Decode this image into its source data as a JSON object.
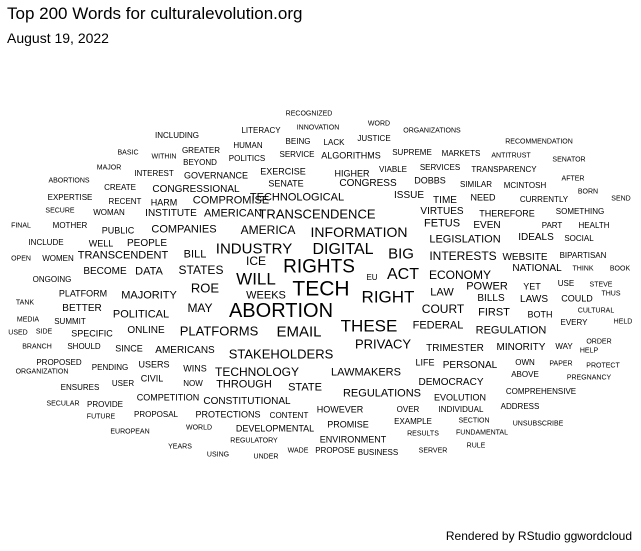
{
  "title": "Top 200 Words for culturalevolution.org",
  "subtitle": "August 19, 2022",
  "caption": "Rendered by RStudio ggwordcloud",
  "words": [
    "RECOGNIZED",
    "WORD",
    "INNOVATION",
    "LITERACY",
    "ORGANIZATIONS",
    "INCLUDING",
    "JUSTICE",
    "BEING",
    "HUMAN",
    "LACK",
    "RECOMMENDATION",
    "BASIC",
    "GREATER",
    "SERVICE",
    "ALGORITHMS",
    "SUPREME",
    "MARKETS",
    "ANTITRUST",
    "WITHIN",
    "POLITICS",
    "SENATOR",
    "BEYOND",
    "MAJOR",
    "VIABLE",
    "SERVICES",
    "TRANSPARENCY",
    "INTEREST",
    "GOVERNANCE",
    "EXERCISE",
    "HIGHER",
    "AFTER",
    "ABORTIONS",
    "DOBBS",
    "SIMILAR",
    "MCINTOSH",
    "CREATE",
    "SENATE",
    "CONGRESS",
    "BORN",
    "CONGRESSIONAL",
    "TECHNOLOGICAL",
    "ISSUE",
    "NEED",
    "EXPERTISE",
    "RECENT",
    "HARM",
    "COMPROMISE",
    "TIME",
    "CURRENTLY",
    "SEND",
    "SECURE",
    "WOMAN",
    "INSTITUTE",
    "AMERICAN",
    "TRANSCENDENCE",
    "VIRTUES",
    "THEREFORE",
    "SOMETHING",
    "FINAL",
    "MOTHER",
    "FETUS",
    "EVEN",
    "PART",
    "HEALTH",
    "PUBLIC",
    "COMPANIES",
    "AMERICA",
    "INFORMATION",
    "IDEALS",
    "SOCIAL",
    "INCLUDE",
    "WELL",
    "PEOPLE",
    "INDUSTRY",
    "DIGITAL",
    "LEGISLATION",
    "BIG",
    "BIPARTISAN",
    "OPEN",
    "WOMEN",
    "TRANSCENDENT",
    "BILL",
    "ICE",
    "INTERESTS",
    "WEBSITE",
    "THINK",
    "BOOK",
    "BECOME",
    "DATA",
    "STATES",
    "RIGHTS",
    "NATIONAL",
    "WILL",
    "EU",
    "ECONOMY",
    "USE",
    "STEVE",
    "ONGOING",
    "YET",
    "ACT",
    "POWER",
    "TANK",
    "PLATFORM",
    "MAJORITY",
    "ROE",
    "TECH",
    "LAW",
    "BILLS",
    "LAWS",
    "COULD",
    "THUS",
    "WEEKS",
    "RIGHT",
    "BETTER",
    "MAY",
    "FIRST",
    "CULTURAL",
    "MEDIA",
    "SUMMIT",
    "POLITICAL",
    "ABORTION",
    "COURT",
    "BOTH",
    "EVERY",
    "HELD",
    "USED",
    "SIDE",
    "SPECIFIC",
    "ONLINE",
    "PLATFORMS",
    "EMAIL",
    "THESE",
    "FEDERAL",
    "REGULATION",
    "ORDER",
    "BRANCH",
    "SHOULD",
    "SINCE",
    "AMERICANS",
    "STAKEHOLDERS",
    "PRIVACY",
    "TRIMESTER",
    "MINORITY",
    "WAY",
    "HELP",
    "ORGANIZATION",
    "PROPOSED",
    "PENDING",
    "USERS",
    "WINS",
    "TECHNOLOGY",
    "LIFE",
    "OWN",
    "PAPER",
    "PROTECT",
    "PERSONAL",
    "LAWMAKERS",
    "CIVIL",
    "ABOVE",
    "PREGNANCY",
    "ENSURES",
    "USER",
    "NOW",
    "THROUGH",
    "STATE",
    "DEMOCRACY",
    "REGULATIONS",
    "COMPREHENSIVE",
    "COMPETITION",
    "CONSTITUTIONAL",
    "EVOLUTION",
    "SECULAR",
    "PROVIDE",
    "ADDRESS",
    "HOWEVER",
    "OVER",
    "INDIVIDUAL",
    "FUTURE",
    "PROPOSAL",
    "PROTECTIONS",
    "CONTENT",
    "EXAMPLE",
    "SECTION",
    "UNSUBSCRIBE",
    "WORLD",
    "PROMISE",
    "EUROPEAN",
    "DEVELOPMENTAL",
    "RESULTS",
    "FUNDAMENTAL",
    "REGULATORY",
    "ENVIRONMENT",
    "YEARS",
    "RULE",
    "USING",
    "WADE",
    "PROPOSE",
    "BUSINESS",
    "SERVER",
    "UNDER"
  ]
}
